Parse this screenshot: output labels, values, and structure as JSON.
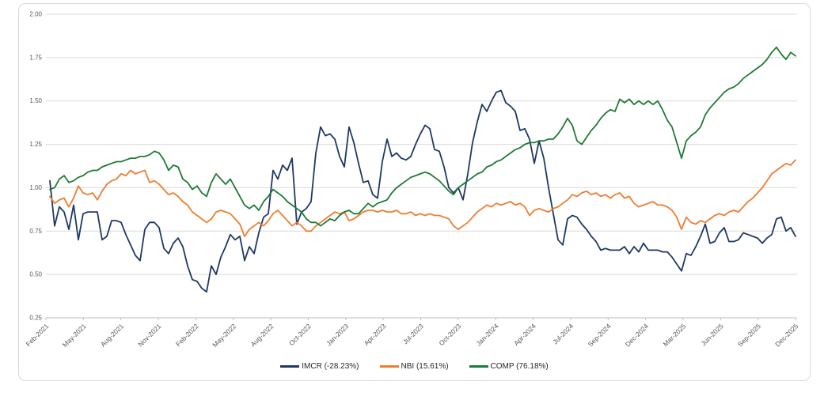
{
  "page": {
    "background_color": "#ffffff",
    "frame_border_color": "#d9d9d9"
  },
  "chart_data": {
    "type": "line",
    "title": "",
    "xlabel": "",
    "ylabel": "",
    "grid": "horizontal",
    "grid_color": "#d9d9d9",
    "axis_color": "#bfbfbf",
    "tick_label_color": "#595959",
    "legend_position": "bottom",
    "x_axis": {
      "tick_labels": [
        "Feb-2021",
        "May-2021",
        "Aug-2021",
        "Nov-2021",
        "Feb-2022",
        "May-2022",
        "Aug-2022",
        "Oct-2022",
        "Jan-2023",
        "Apr-2023",
        "Jul-2023",
        "Oct-2023",
        "Jan-2024",
        "Apr-2024",
        "Jul-2024",
        "Sep-2024",
        "Dec-2024",
        "Mar-2025",
        "Jun-2025",
        "Sep-2025",
        "Dec-2025"
      ]
    },
    "y_axis": {
      "min": 0.25,
      "max": 2.0,
      "step": 0.25,
      "tick_labels": [
        "2.00",
        "1.75",
        "1.50",
        "1.25",
        "1.00",
        "0.75",
        "0.50",
        "0.25"
      ]
    },
    "series": [
      {
        "name": "IMCR (-28.23%)",
        "slug": "imcr",
        "color": "#1f3864",
        "final_return_pct": -28.23,
        "values": [
          1.04,
          0.78,
          0.89,
          0.86,
          0.76,
          0.9,
          0.7,
          0.85,
          0.86,
          0.86,
          0.86,
          0.7,
          0.72,
          0.81,
          0.81,
          0.8,
          0.73,
          0.67,
          0.61,
          0.58,
          0.76,
          0.8,
          0.8,
          0.77,
          0.65,
          0.62,
          0.68,
          0.71,
          0.66,
          0.55,
          0.47,
          0.46,
          0.42,
          0.4,
          0.55,
          0.5,
          0.6,
          0.66,
          0.73,
          0.7,
          0.72,
          0.58,
          0.66,
          0.62,
          0.74,
          0.83,
          0.85,
          1.1,
          1.05,
          1.13,
          1.1,
          1.17,
          0.79,
          0.86,
          0.88,
          0.92,
          1.2,
          1.35,
          1.3,
          1.31,
          1.28,
          1.18,
          1.12,
          1.35,
          1.26,
          1.14,
          1.03,
          1.04,
          0.96,
          0.94,
          1.15,
          1.28,
          1.18,
          1.2,
          1.17,
          1.16,
          1.18,
          1.25,
          1.31,
          1.36,
          1.34,
          1.22,
          1.21,
          1.12,
          1.0,
          0.97,
          1.0,
          0.93,
          1.08,
          1.26,
          1.38,
          1.48,
          1.44,
          1.5,
          1.55,
          1.56,
          1.49,
          1.47,
          1.44,
          1.33,
          1.34,
          1.28,
          1.14,
          1.27,
          1.17,
          1.0,
          0.85,
          0.7,
          0.67,
          0.82,
          0.84,
          0.83,
          0.79,
          0.76,
          0.72,
          0.69,
          0.64,
          0.65,
          0.64,
          0.64,
          0.64,
          0.66,
          0.62,
          0.66,
          0.63,
          0.68,
          0.64,
          0.64,
          0.64,
          0.63,
          0.63,
          0.6,
          0.56,
          0.52,
          0.62,
          0.61,
          0.66,
          0.72,
          0.79,
          0.68,
          0.69,
          0.74,
          0.77,
          0.69,
          0.69,
          0.7,
          0.74,
          0.73,
          0.72,
          0.71,
          0.68,
          0.71,
          0.73,
          0.82,
          0.83,
          0.75,
          0.77,
          0.72
        ]
      },
      {
        "name": "NBI (15.61%)",
        "slug": "nbi",
        "color": "#ed7d31",
        "final_return_pct": 15.61,
        "values": [
          0.95,
          0.91,
          0.93,
          0.94,
          0.89,
          0.94,
          1.01,
          0.97,
          0.96,
          0.97,
          0.93,
          0.98,
          1.02,
          1.04,
          1.05,
          1.08,
          1.07,
          1.1,
          1.08,
          1.09,
          1.1,
          1.03,
          1.04,
          1.02,
          0.99,
          0.96,
          0.97,
          0.95,
          0.92,
          0.9,
          0.86,
          0.84,
          0.82,
          0.8,
          0.82,
          0.86,
          0.87,
          0.86,
          0.85,
          0.82,
          0.79,
          0.72,
          0.76,
          0.78,
          0.8,
          0.78,
          0.81,
          0.85,
          0.87,
          0.84,
          0.81,
          0.78,
          0.8,
          0.78,
          0.75,
          0.75,
          0.78,
          0.8,
          0.82,
          0.84,
          0.86,
          0.85,
          0.86,
          0.81,
          0.82,
          0.84,
          0.86,
          0.87,
          0.87,
          0.86,
          0.87,
          0.86,
          0.86,
          0.87,
          0.85,
          0.85,
          0.86,
          0.84,
          0.85,
          0.84,
          0.85,
          0.84,
          0.84,
          0.83,
          0.82,
          0.78,
          0.76,
          0.78,
          0.8,
          0.83,
          0.86,
          0.88,
          0.9,
          0.89,
          0.91,
          0.9,
          0.91,
          0.92,
          0.9,
          0.91,
          0.89,
          0.84,
          0.87,
          0.88,
          0.87,
          0.86,
          0.88,
          0.89,
          0.91,
          0.93,
          0.96,
          0.95,
          0.97,
          0.98,
          0.96,
          0.97,
          0.95,
          0.96,
          0.94,
          0.96,
          0.97,
          0.94,
          0.95,
          0.91,
          0.89,
          0.9,
          0.91,
          0.92,
          0.9,
          0.9,
          0.89,
          0.87,
          0.83,
          0.76,
          0.83,
          0.8,
          0.79,
          0.81,
          0.8,
          0.82,
          0.84,
          0.85,
          0.84,
          0.86,
          0.87,
          0.86,
          0.89,
          0.92,
          0.94,
          0.97,
          1.0,
          1.04,
          1.08,
          1.1,
          1.12,
          1.14,
          1.13,
          1.16
        ]
      },
      {
        "name": "COMP (76.18%)",
        "slug": "comp",
        "color": "#1e7b34",
        "final_return_pct": 76.18,
        "values": [
          0.99,
          1.0,
          1.05,
          1.07,
          1.03,
          1.04,
          1.06,
          1.07,
          1.09,
          1.1,
          1.1,
          1.12,
          1.13,
          1.14,
          1.15,
          1.15,
          1.16,
          1.17,
          1.17,
          1.18,
          1.18,
          1.19,
          1.21,
          1.2,
          1.16,
          1.1,
          1.13,
          1.12,
          1.05,
          1.03,
          0.99,
          1.01,
          0.97,
          0.95,
          1.03,
          1.08,
          1.05,
          1.02,
          1.05,
          1.0,
          0.95,
          0.9,
          0.88,
          0.9,
          0.87,
          0.92,
          0.95,
          0.99,
          0.97,
          0.95,
          0.92,
          0.9,
          0.88,
          0.86,
          0.82,
          0.8,
          0.8,
          0.78,
          0.8,
          0.82,
          0.81,
          0.84,
          0.86,
          0.87,
          0.85,
          0.85,
          0.88,
          0.91,
          0.89,
          0.91,
          0.92,
          0.93,
          0.97,
          1.0,
          1.02,
          1.04,
          1.06,
          1.07,
          1.08,
          1.09,
          1.08,
          1.06,
          1.04,
          1.01,
          0.98,
          0.96,
          1.0,
          1.02,
          1.04,
          1.06,
          1.08,
          1.09,
          1.12,
          1.13,
          1.15,
          1.16,
          1.18,
          1.2,
          1.22,
          1.23,
          1.25,
          1.26,
          1.26,
          1.27,
          1.27,
          1.28,
          1.28,
          1.31,
          1.35,
          1.4,
          1.36,
          1.27,
          1.25,
          1.29,
          1.33,
          1.36,
          1.4,
          1.43,
          1.45,
          1.44,
          1.51,
          1.49,
          1.51,
          1.48,
          1.5,
          1.48,
          1.5,
          1.48,
          1.5,
          1.45,
          1.39,
          1.35,
          1.26,
          1.17,
          1.27,
          1.3,
          1.32,
          1.35,
          1.42,
          1.46,
          1.49,
          1.52,
          1.55,
          1.57,
          1.58,
          1.6,
          1.63,
          1.65,
          1.67,
          1.69,
          1.71,
          1.74,
          1.78,
          1.81,
          1.77,
          1.74,
          1.78,
          1.76
        ]
      }
    ]
  }
}
